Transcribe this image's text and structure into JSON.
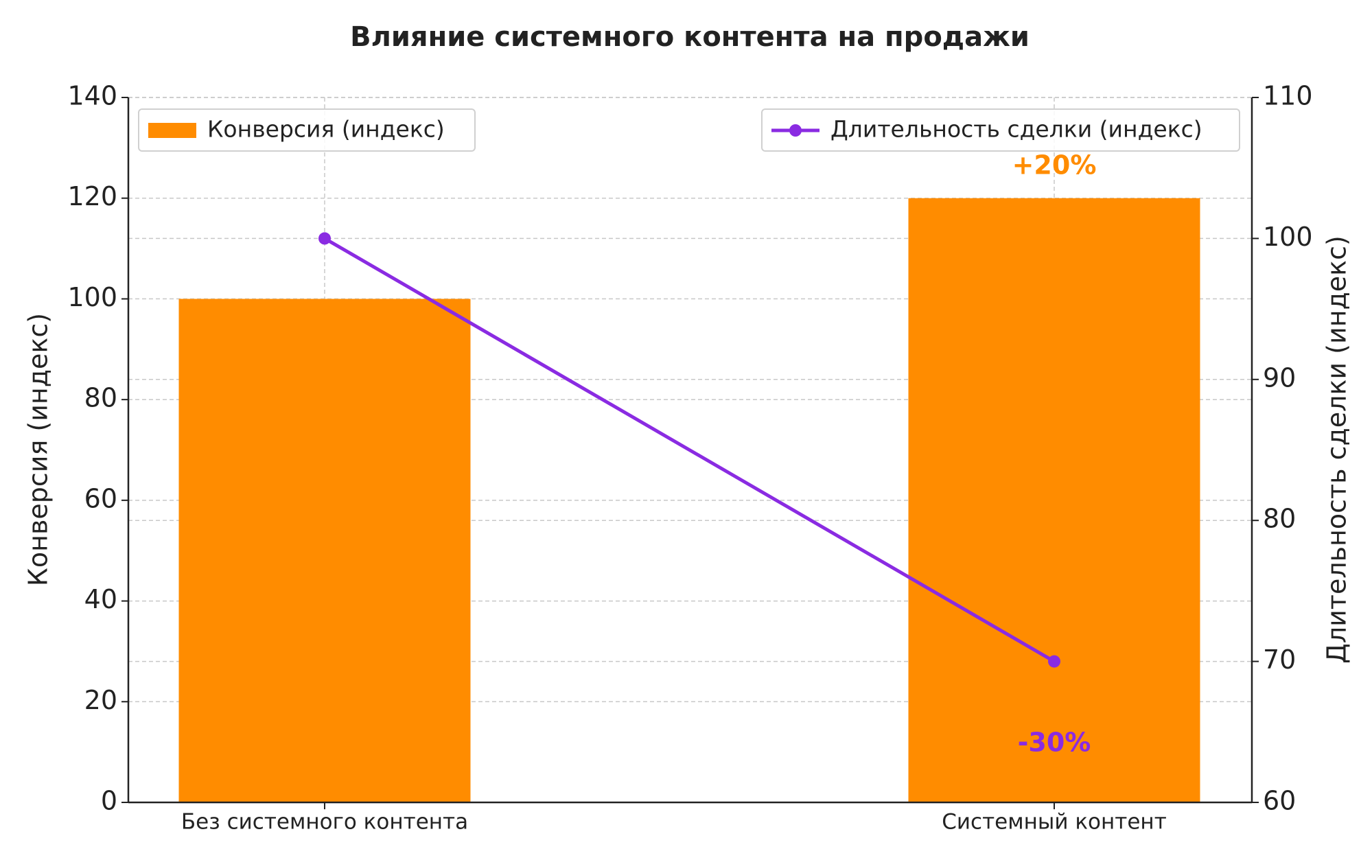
{
  "chart_data": {
    "type": "bar",
    "title": "Влияние системного контента на продажи",
    "categories": [
      "Без системного контента",
      "Системный контент"
    ],
    "series": [
      {
        "name": "Конверсия (индекс)",
        "type": "bar",
        "color": "#ff8c00",
        "values": [
          100,
          120
        ]
      },
      {
        "name": "Длительность сделки (индекс)",
        "type": "line",
        "axis": "y2",
        "color": "#8a2be2",
        "values": [
          100,
          70
        ]
      }
    ],
    "y_label": "Конверсия (индекс)",
    "y2_label": "Длительность сделки (индекс)",
    "ylim": [
      0,
      140
    ],
    "yticks": [
      0,
      20,
      40,
      60,
      80,
      100,
      120,
      140
    ],
    "y2lim": [
      60,
      110
    ],
    "y2ticks": [
      60,
      70,
      80,
      90,
      100,
      110
    ],
    "grid": true,
    "annotations": [
      {
        "text": "+20%",
        "color": "#ff8c00"
      },
      {
        "text": "-30%",
        "color": "#8a2be2"
      }
    ]
  }
}
